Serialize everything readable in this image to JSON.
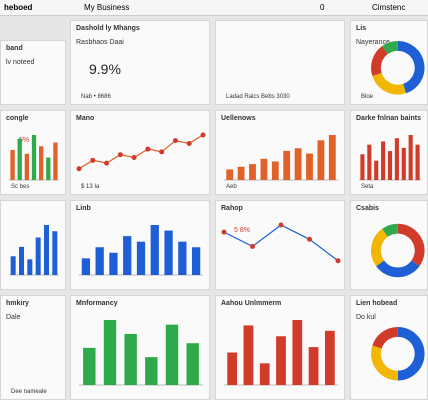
{
  "topbar": {
    "left": "heboed",
    "title": "My Business",
    "badge": "0",
    "right": "Cimstenc"
  },
  "panels": [
    {
      "title": "band",
      "note": "lv noteed"
    },
    {
      "title": "Dashold ly Mhangs",
      "kpi": "9.9%",
      "note": "Rasbhaos Daai",
      "footer": "Nab • 8686"
    },
    {
      "title": "",
      "kpi": "",
      "footer": "Ladad Raics Bebs 3030"
    },
    {
      "title": "Lis",
      "note": "Nayerance",
      "footer": "Bloe",
      "chart": {
        "type": "donut",
        "colors": [
          "#1f5fd6",
          "#f2b705",
          "#d13b2a",
          "#2eaa4a"
        ],
        "values": [
          45,
          25,
          20,
          10
        ]
      }
    },
    {
      "title": "congle",
      "kpi": "5%",
      "footer": "Sc bes",
      "chart": {
        "type": "bar",
        "colors": [
          "#e0622a",
          "#2eaa4a"
        ],
        "values": [
          40,
          55,
          35,
          60,
          45,
          30,
          50
        ]
      }
    },
    {
      "title": "Mano",
      "footer": "$ 13 Ia",
      "chart": {
        "type": "line",
        "colors": [
          "#e0622a"
        ],
        "values": [
          20,
          35,
          30,
          45,
          40,
          55,
          50,
          70,
          65,
          80
        ]
      }
    },
    {
      "title": "Uellenows",
      "footer": "Aeb",
      "chart": {
        "type": "bar",
        "colors": [
          "#e0622a"
        ],
        "values": [
          20,
          25,
          30,
          40,
          35,
          55,
          60,
          50,
          75,
          85
        ]
      }
    },
    {
      "title": "Darke fnlnan baints",
      "footer": "Seta",
      "chart": {
        "type": "bar",
        "colors": [
          "#d13b2a"
        ],
        "values": [
          40,
          55,
          30,
          60,
          45,
          65,
          50,
          70,
          55
        ]
      }
    },
    {
      "title": "",
      "chart": {
        "type": "bar",
        "colors": [
          "#1f5fd6"
        ],
        "values": [
          30,
          45,
          25,
          60,
          80,
          70
        ]
      }
    },
    {
      "title": "Linb",
      "chart": {
        "type": "bar",
        "colors": [
          "#1f5fd6"
        ],
        "values": [
          15,
          25,
          20,
          35,
          30,
          45,
          40,
          30,
          25
        ]
      }
    },
    {
      "title": "Rahop",
      "kpi": "5 8%",
      "chart": {
        "type": "line",
        "colors": [
          "#1f5fd6"
        ],
        "values": [
          60,
          40,
          70,
          50,
          20
        ]
      }
    },
    {
      "title": "Csabis",
      "chart": {
        "type": "donut",
        "colors": [
          "#d13b2a",
          "#1f5fd6",
          "#f2b705",
          "#2eaa4a"
        ],
        "values": [
          35,
          30,
          25,
          10
        ]
      }
    },
    {
      "title": "hmkiry",
      "note": "Dale",
      "footer": "Dee nameale"
    },
    {
      "title": "Mnformancy",
      "chart": {
        "type": "bar",
        "colors": [
          "#2eaa4a"
        ],
        "values": [
          40,
          70,
          55,
          30,
          65,
          45
        ]
      }
    },
    {
      "title": "Aahou Unlmmerm",
      "chart": {
        "type": "bar",
        "colors": [
          "#d13b2a"
        ],
        "values": [
          30,
          55,
          20,
          45,
          60,
          35,
          50
        ]
      }
    },
    {
      "title": "Lien hobead",
      "note": "Do kul",
      "chart": {
        "type": "donut",
        "colors": [
          "#1f5fd6",
          "#f2b705",
          "#d13b2a"
        ],
        "values": [
          50,
          30,
          20
        ]
      }
    }
  ]
}
